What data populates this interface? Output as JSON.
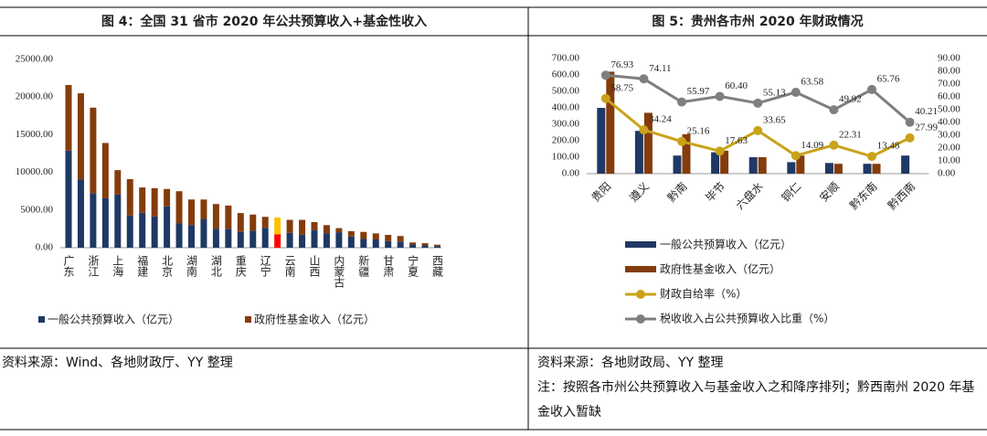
{
  "chart_data": [
    {
      "type": "stacked_bar",
      "title": "图 4：全国 31 省市 2020 年公共预算收入+基金性收入",
      "categories": [
        "广东",
        null,
        "浙江",
        null,
        "上海",
        null,
        "福建",
        null,
        "北京",
        null,
        "湖南",
        null,
        "湖北",
        null,
        "重庆",
        null,
        "辽宁",
        null,
        "云南",
        null,
        "山西",
        null,
        "内蒙古",
        null,
        "新疆",
        null,
        "甘肃",
        null,
        "宁夏",
        null,
        "西藏"
      ],
      "series": [
        {
          "name": "一般公共预算收入（亿元）",
          "color": "#1f3864",
          "values": [
            12900,
            9050,
            7250,
            6560,
            7050,
            4260,
            4640,
            4160,
            5480,
            3220,
            3010,
            3830,
            2510,
            2510,
            2100,
            2260,
            2650,
            1790,
            1960,
            1720,
            2300,
            1920,
            2050,
            1480,
            1150,
            1090,
            870,
            820,
            420,
            300,
            220
          ]
        },
        {
          "name": "政府性基金收入（亿元）",
          "color": "#843c0c",
          "values": [
            8700,
            11450,
            11350,
            7340,
            3250,
            4840,
            3360,
            3740,
            2320,
            4280,
            3390,
            2570,
            3290,
            3090,
            2500,
            2140,
            1450,
            2210,
            1740,
            1980,
            1100,
            1080,
            550,
            720,
            950,
            810,
            830,
            730,
            280,
            300,
            180
          ]
        }
      ],
      "highlight": {
        "index": 17,
        "colors": [
          "#ff0000",
          "#ffc000"
        ]
      },
      "ylim": [
        0,
        25000
      ],
      "yticks": [
        {
          "value": 0,
          "label": "0.00"
        },
        {
          "value": 5000,
          "label": "5000.00"
        },
        {
          "value": 10000,
          "label": "10000.00"
        },
        {
          "value": 15000,
          "label": "15000.00"
        },
        {
          "value": 20000,
          "label": "20000.00"
        },
        {
          "value": 25000,
          "label": "25000.00"
        }
      ],
      "source": "资料来源：Wind、各地财政厅、YY 整理"
    },
    {
      "type": "combo",
      "title": "图 5：贵州各市州 2020 年财政情况",
      "categories": [
        "贵阳",
        "遵义",
        "黔南",
        "毕节",
        "六盘水",
        "铜仁",
        "安顺",
        "黔东南",
        "黔西南"
      ],
      "series": [
        {
          "name": "一般公共预算收入（亿元）",
          "type": "bar",
          "color": "#1f3864",
          "values": [
            400,
            260,
            110,
            130,
            100,
            70,
            65,
            60,
            110
          ]
        },
        {
          "name": "政府性基金收入（亿元）",
          "type": "bar",
          "color": "#843c0c",
          "values": [
            620,
            370,
            240,
            140,
            100,
            110,
            60,
            60,
            null
          ]
        },
        {
          "name": "财政自给率（%）",
          "type": "line",
          "axis": "y2",
          "color": "#c9a21a",
          "values": [
            58.75,
            34.24,
            25.16,
            17.63,
            33.65,
            14.09,
            22.31,
            13.48,
            27.99
          ],
          "value_labels": [
            "58.75",
            "34.24",
            "25.16",
            "17.63",
            "33.65",
            "14.09",
            "22.31",
            "13.48",
            "27.99"
          ]
        },
        {
          "name": "税收收入占公共预算收入比重（%）",
          "type": "line",
          "axis": "y2",
          "color": "#7f7f7f",
          "values": [
            76.93,
            74.11,
            55.97,
            60.4,
            55.13,
            63.58,
            49.92,
            65.76,
            40.21
          ],
          "value_labels": [
            "76.93",
            "74.11",
            "55.97",
            "60.40",
            "55.13",
            "63.58",
            "49.92",
            "65.76",
            "40.21"
          ]
        }
      ],
      "ylim": [
        0,
        700
      ],
      "yticks": [
        {
          "value": 0,
          "label": "0.00"
        },
        {
          "value": 100,
          "label": "100.00"
        },
        {
          "value": 200,
          "label": "200.00"
        },
        {
          "value": 300,
          "label": "300.00"
        },
        {
          "value": 400,
          "label": "400.00"
        },
        {
          "value": 500,
          "label": "500.00"
        },
        {
          "value": 600,
          "label": "600.00"
        },
        {
          "value": 700,
          "label": "700.00"
        }
      ],
      "y2lim": [
        0,
        90
      ],
      "y2ticks": [
        {
          "value": 0,
          "label": "0.00"
        },
        {
          "value": 10,
          "label": "10.00"
        },
        {
          "value": 20,
          "label": "20.00"
        },
        {
          "value": 30,
          "label": "30.00"
        },
        {
          "value": 40,
          "label": "40.00"
        },
        {
          "value": 50,
          "label": "50.00"
        },
        {
          "value": 60,
          "label": "60.00"
        },
        {
          "value": 70,
          "label": "70.00"
        },
        {
          "value": 80,
          "label": "80.00"
        },
        {
          "value": 90,
          "label": "90.00"
        }
      ],
      "source": "资料来源：各地财政局、YY 整理",
      "note": "注：按照各市州公共预算收入与基金收入之和降序排列；黔西南州 2020 年基金收入暂缺"
    }
  ]
}
